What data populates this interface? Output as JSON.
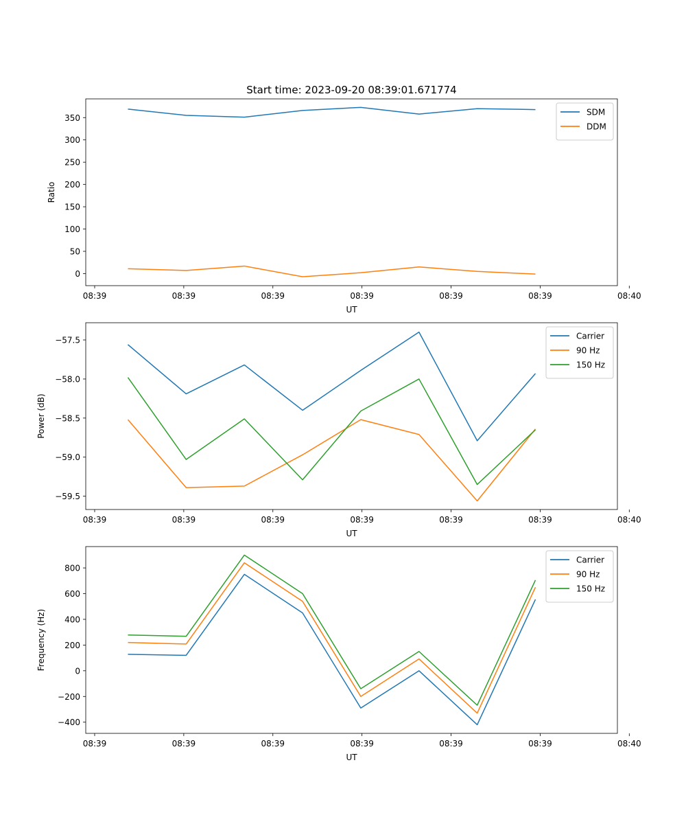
{
  "figure_title": "Start time: 2023-09-20 08:39:01.671774",
  "colors": {
    "c0": "#1f77b4",
    "c1": "#ff7f0e",
    "c2": "#2ca02c"
  },
  "chart_data": [
    {
      "type": "line",
      "title": "Start time: 2023-09-20 08:39:01.671774",
      "xlabel": "UT",
      "ylabel": "Ratio",
      "legend_position": "top-right",
      "xlim": [
        -0.15,
        8.8
      ],
      "ylim": [
        -27,
        392
      ],
      "xticks": [
        0,
        1.5,
        3,
        4.5,
        6,
        7.5,
        9
      ],
      "xtick_labels": [
        "08:39",
        "08:39",
        "08:39",
        "08:39",
        "08:39",
        "08:39",
        "08:40"
      ],
      "yticks": [
        0,
        50,
        100,
        150,
        200,
        250,
        300,
        350
      ],
      "ytick_labels": [
        "0",
        "50",
        "100",
        "150",
        "200",
        "250",
        "300",
        "350"
      ],
      "x": [
        0.56,
        1.54,
        2.52,
        3.5,
        4.48,
        5.46,
        6.44,
        7.42
      ],
      "series": [
        {
          "name": "SDM",
          "color": "#1f77b4",
          "values": [
            369,
            355,
            351,
            366,
            373,
            358,
            370,
            368
          ]
        },
        {
          "name": "DDM",
          "color": "#ff7f0e",
          "values": [
            11,
            7,
            17,
            -7,
            2,
            15,
            5,
            -1
          ]
        }
      ]
    },
    {
      "type": "line",
      "title": "",
      "xlabel": "UT",
      "ylabel": "Power (dB)",
      "legend_position": "top-right",
      "xlim": [
        -0.15,
        8.8
      ],
      "ylim": [
        -59.67,
        -57.28
      ],
      "xticks": [
        0,
        1.5,
        3,
        4.5,
        6,
        7.5,
        9
      ],
      "xtick_labels": [
        "08:39",
        "08:39",
        "08:39",
        "08:39",
        "08:39",
        "08:39",
        "08:40"
      ],
      "yticks": [
        -59.5,
        -59.0,
        -58.5,
        -58.0,
        -57.5
      ],
      "ytick_labels": [
        "−59.5",
        "−59.0",
        "−58.5",
        "−58.0",
        "−57.5"
      ],
      "x": [
        0.56,
        1.54,
        2.52,
        3.5,
        4.48,
        5.46,
        6.44,
        7.42
      ],
      "series": [
        {
          "name": "Carrier",
          "color": "#1f77b4",
          "values": [
            -57.56,
            -58.19,
            -57.82,
            -58.4,
            -57.89,
            -57.4,
            -58.79,
            -57.93
          ]
        },
        {
          "name": "90 Hz",
          "color": "#ff7f0e",
          "values": [
            -58.52,
            -59.39,
            -59.37,
            -58.97,
            -58.52,
            -58.71,
            -59.56,
            -58.64
          ]
        },
        {
          "name": "150 Hz",
          "color": "#2ca02c",
          "values": [
            -57.98,
            -59.03,
            -58.51,
            -59.29,
            -58.41,
            -58.0,
            -59.35,
            -58.65
          ]
        }
      ]
    },
    {
      "type": "line",
      "title": "",
      "xlabel": "UT",
      "ylabel": "Frequency (Hz)",
      "legend_position": "top-right",
      "xlim": [
        -0.15,
        8.8
      ],
      "ylim": [
        -487,
        966
      ],
      "xticks": [
        0,
        1.5,
        3,
        4.5,
        6,
        7.5,
        9
      ],
      "xtick_labels": [
        "08:39",
        "08:39",
        "08:39",
        "08:39",
        "08:39",
        "08:39",
        "08:40"
      ],
      "yticks": [
        -400,
        -200,
        0,
        200,
        400,
        600,
        800
      ],
      "ytick_labels": [
        "−400",
        "−200",
        "0",
        "200",
        "400",
        "600",
        "800"
      ],
      "x": [
        0.56,
        1.54,
        2.52,
        3.5,
        4.48,
        5.46,
        6.44,
        7.42
      ],
      "series": [
        {
          "name": "Carrier",
          "color": "#1f77b4",
          "values": [
            128,
            120,
            750,
            450,
            -290,
            0,
            -420,
            555
          ]
        },
        {
          "name": "90 Hz",
          "color": "#ff7f0e",
          "values": [
            220,
            208,
            840,
            540,
            -200,
            92,
            -330,
            650
          ]
        },
        {
          "name": "150 Hz",
          "color": "#2ca02c",
          "values": [
            278,
            268,
            900,
            600,
            -140,
            150,
            -268,
            705
          ]
        }
      ]
    }
  ]
}
